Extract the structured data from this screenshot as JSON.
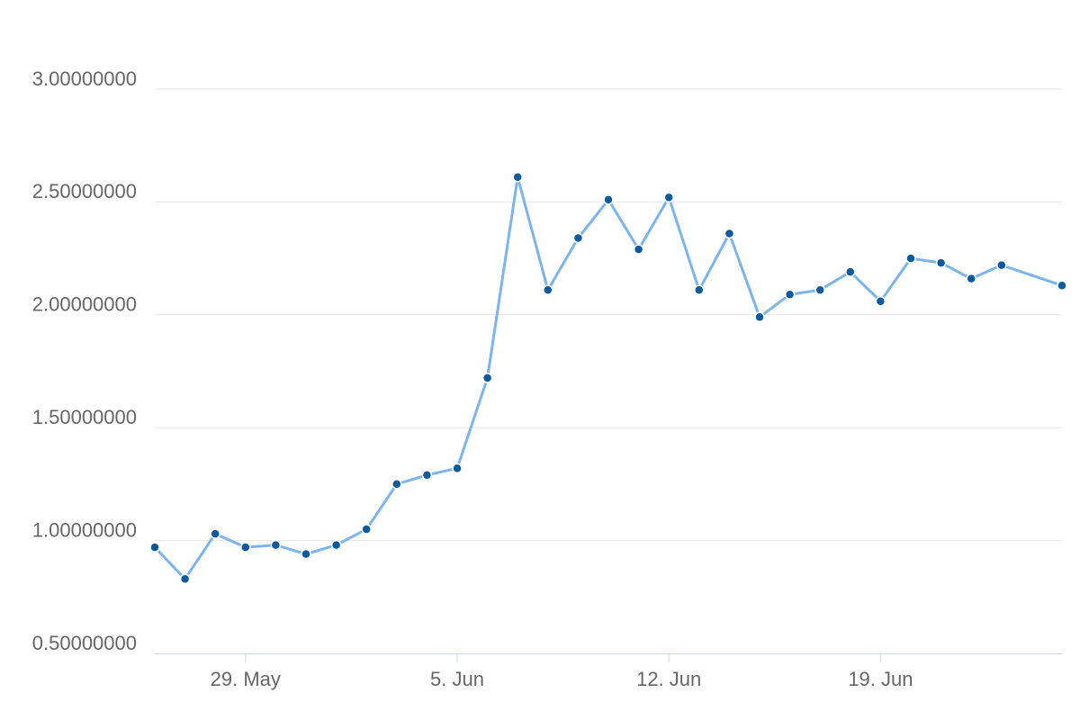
{
  "chart_data": {
    "type": "line",
    "x": [
      "05-26",
      "05-27",
      "05-28",
      "05-29",
      "05-30",
      "05-31",
      "06-01",
      "06-02",
      "06-03",
      "06-04",
      "06-05",
      "06-06",
      "06-07",
      "06-08",
      "06-09",
      "06-10",
      "06-11",
      "06-12",
      "06-13",
      "06-14",
      "06-15",
      "06-16",
      "06-17",
      "06-18",
      "06-19",
      "06-20",
      "06-21",
      "06-22",
      "06-23",
      "06-25"
    ],
    "series": [
      {
        "color": "#7cb5ec",
        "marker_color": "#0b5a9c",
        "values": [
          0.97,
          0.83,
          1.03,
          0.97,
          0.98,
          0.94,
          0.98,
          1.05,
          1.25,
          1.29,
          1.32,
          1.72,
          2.61,
          2.11,
          2.34,
          2.51,
          2.29,
          2.52,
          2.11,
          2.36,
          1.99,
          2.09,
          2.11,
          2.19,
          2.06,
          2.25,
          2.23,
          2.16,
          2.22,
          2.13
        ]
      }
    ],
    "xlim": [
      "05-26",
      "06-25"
    ],
    "xticks": [
      {
        "value": "05-29",
        "label": "29. May"
      },
      {
        "value": "06-05",
        "label": "5. Jun"
      },
      {
        "value": "06-12",
        "label": "12. Jun"
      },
      {
        "value": "06-19",
        "label": "19. Jun"
      }
    ],
    "ylim": [
      0.5,
      3.0
    ],
    "yticks": [
      {
        "value": 0.5,
        "label": "0.50000000"
      },
      {
        "value": 1.0,
        "label": "1.00000000"
      },
      {
        "value": 1.5,
        "label": "1.50000000"
      },
      {
        "value": 2.0,
        "label": "2.00000000"
      },
      {
        "value": 2.5,
        "label": "2.50000000"
      },
      {
        "value": 3.0,
        "label": "3.00000000"
      }
    ],
    "grid": true
  }
}
